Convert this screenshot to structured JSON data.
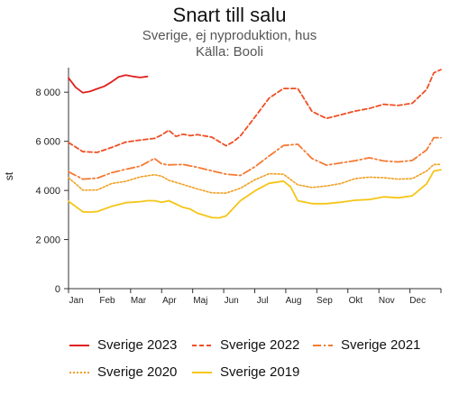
{
  "chart_data": {
    "type": "line",
    "title": "Snart till salu",
    "subtitle_lines": [
      "Sverige, ej nyproduktion, hus",
      "Källa: Booli"
    ],
    "ylabel": "st",
    "xlabel": "",
    "ylim": [
      0,
      9000
    ],
    "yticks": [
      0,
      2000,
      4000,
      6000,
      8000
    ],
    "ytick_labels": [
      "0",
      "2 000",
      "4 000",
      "6 000",
      "8 000"
    ],
    "xlim": [
      0,
      52
    ],
    "x_unit": "week of year",
    "month_labels": [
      "Jan",
      "Feb",
      "Mar",
      "Apr",
      "Maj",
      "Jun",
      "Jul",
      "Aug",
      "Sep",
      "Okt",
      "Nov",
      "Dec"
    ],
    "grid": false,
    "legend_position": "bottom",
    "series": [
      {
        "name": "Sverige 2023",
        "color": "#e02020",
        "dash": "solid",
        "x": [
          0,
          1,
          2,
          3,
          4,
          5,
          6,
          7,
          8,
          9,
          10,
          11
        ],
        "values": [
          8580,
          8200,
          7980,
          8030,
          8140,
          8240,
          8420,
          8620,
          8700,
          8640,
          8600,
          8640
        ]
      },
      {
        "name": "Sverige 2022",
        "color": "#f04e23",
        "dash": "dashed",
        "x": [
          0,
          2,
          4,
          6,
          8,
          10,
          12,
          13,
          14,
          15,
          16,
          17,
          18,
          20,
          22,
          23,
          24,
          26,
          28,
          30,
          32,
          34,
          36,
          38,
          40,
          42,
          44,
          46,
          48,
          50,
          51,
          52
        ],
        "values": [
          5950,
          5580,
          5550,
          5750,
          5970,
          6050,
          6120,
          6260,
          6450,
          6200,
          6290,
          6230,
          6270,
          6170,
          5820,
          5980,
          6220,
          6980,
          7760,
          8150,
          8150,
          7220,
          6930,
          7080,
          7230,
          7340,
          7510,
          7460,
          7550,
          8110,
          8790,
          8920
        ]
      },
      {
        "name": "Sverige 2021",
        "color": "#f57a33",
        "dash": "dashdot",
        "x": [
          0,
          2,
          4,
          6,
          8,
          10,
          12,
          13,
          14,
          16,
          18,
          20,
          22,
          24,
          26,
          28,
          30,
          32,
          34,
          36,
          38,
          40,
          42,
          44,
          46,
          48,
          50,
          51,
          52
        ],
        "values": [
          4760,
          4460,
          4500,
          4720,
          4860,
          4990,
          5300,
          5080,
          5040,
          5060,
          4940,
          4800,
          4660,
          4610,
          4960,
          5400,
          5830,
          5880,
          5300,
          5030,
          5120,
          5210,
          5330,
          5200,
          5160,
          5220,
          5650,
          6150,
          6150
        ]
      },
      {
        "name": "Sverige 2020",
        "color": "#f0a020",
        "dash": "dotted",
        "x": [
          0,
          2,
          4,
          6,
          8,
          10,
          12,
          13,
          14,
          16,
          18,
          20,
          22,
          24,
          26,
          28,
          30,
          32,
          34,
          36,
          38,
          40,
          42,
          44,
          46,
          48,
          50,
          51,
          52
        ],
        "values": [
          4520,
          4010,
          4020,
          4280,
          4370,
          4550,
          4640,
          4580,
          4410,
          4240,
          4060,
          3900,
          3890,
          4090,
          4430,
          4680,
          4660,
          4230,
          4120,
          4180,
          4280,
          4480,
          4540,
          4520,
          4460,
          4480,
          4790,
          5060,
          5060
        ]
      },
      {
        "name": "Sverige 2019",
        "color": "#f5c518",
        "dash": "solid",
        "x": [
          0,
          2,
          3,
          4,
          6,
          8,
          10,
          11,
          12,
          13,
          14,
          16,
          17,
          18,
          20,
          21,
          22,
          24,
          26,
          28,
          30,
          31,
          32,
          34,
          36,
          38,
          40,
          42,
          44,
          46,
          48,
          50,
          51,
          52
        ],
        "values": [
          3560,
          3130,
          3120,
          3140,
          3350,
          3500,
          3540,
          3580,
          3580,
          3520,
          3580,
          3310,
          3240,
          3070,
          2900,
          2880,
          2960,
          3580,
          3980,
          4290,
          4380,
          4150,
          3580,
          3460,
          3460,
          3520,
          3600,
          3630,
          3740,
          3700,
          3780,
          4270,
          4790,
          4840
        ]
      }
    ]
  }
}
